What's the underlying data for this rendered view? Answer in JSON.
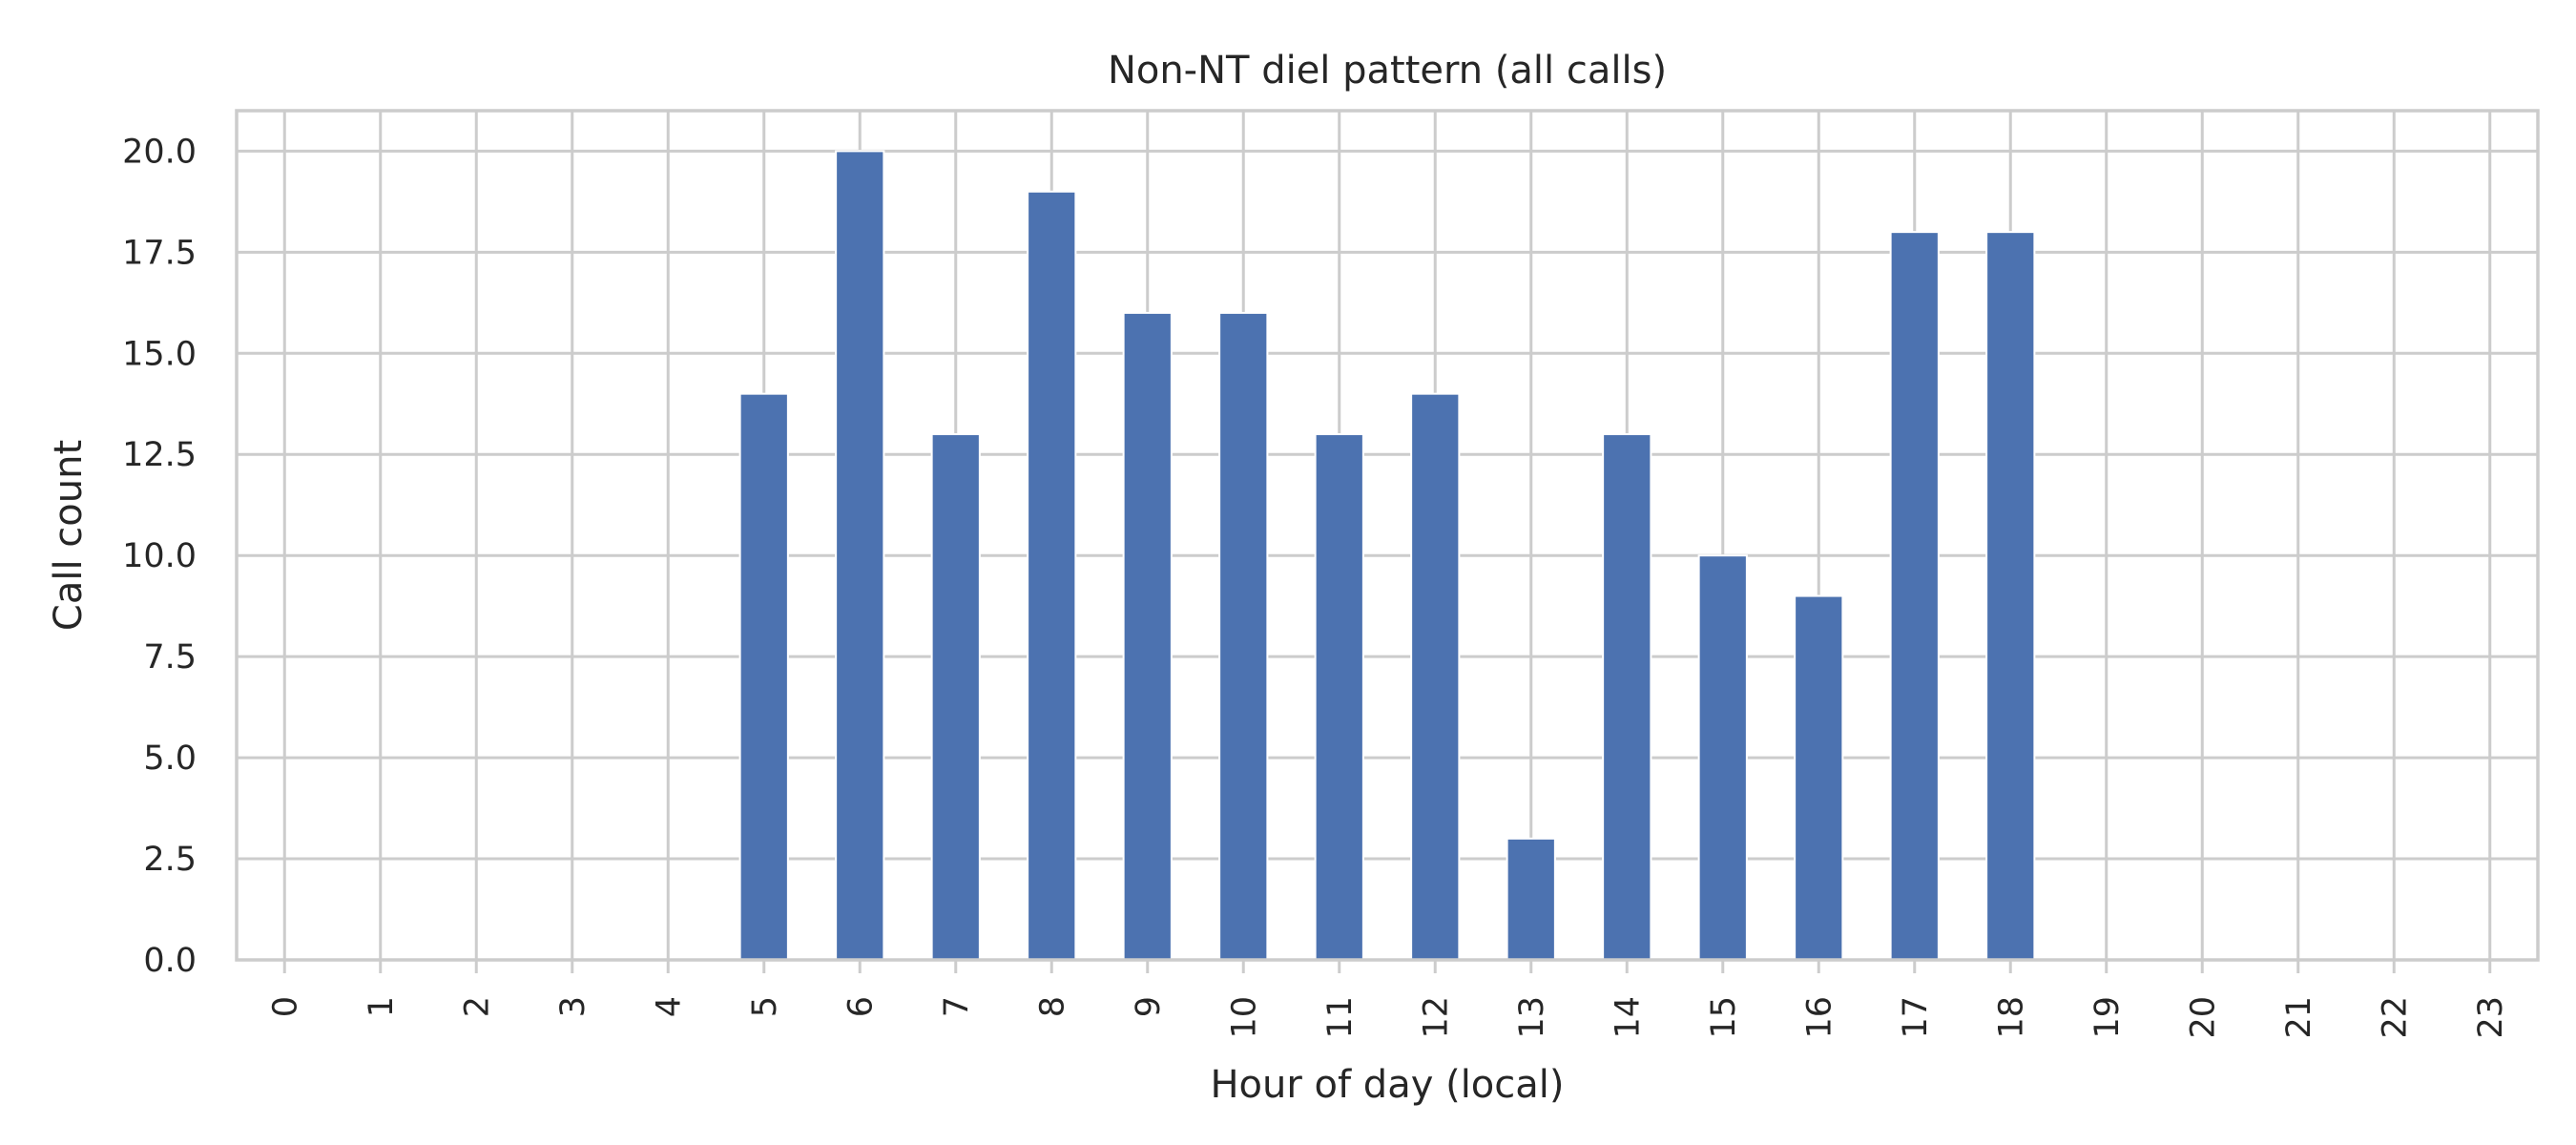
{
  "chart_data": {
    "type": "bar",
    "title": "Non-NT diel pattern (all calls)",
    "xlabel": "Hour of day (local)",
    "ylabel": "Call count",
    "categories": [
      "0",
      "1",
      "2",
      "3",
      "4",
      "5",
      "6",
      "7",
      "8",
      "9",
      "10",
      "11",
      "12",
      "13",
      "14",
      "15",
      "16",
      "17",
      "18",
      "19",
      "20",
      "21",
      "22",
      "23"
    ],
    "values": [
      0,
      0,
      0,
      0,
      0,
      14,
      20,
      13,
      19,
      16,
      16,
      13,
      14,
      3,
      13,
      10,
      9,
      18,
      18,
      0,
      0,
      0,
      0,
      0
    ],
    "ylim": [
      0,
      21
    ],
    "yticks": [
      "0.0",
      "2.5",
      "5.0",
      "7.5",
      "10.0",
      "12.5",
      "15.0",
      "17.5",
      "20.0"
    ],
    "grid": true,
    "bar_color": "#4c72b0",
    "xtick_rotation": "vertical"
  }
}
